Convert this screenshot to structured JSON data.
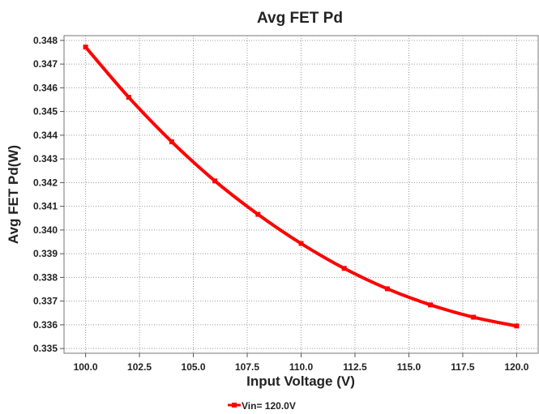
{
  "chart_data": {
    "type": "line",
    "title": "Avg FET Pd",
    "xlabel": "Input Voltage (V)",
    "ylabel": "Avg FET Pd(W)",
    "xlim": [
      99,
      121
    ],
    "ylim": [
      0.3348,
      0.3482
    ],
    "x_ticks": [
      100.0,
      102.5,
      105.0,
      107.5,
      110.0,
      112.5,
      115.0,
      117.5,
      120.0
    ],
    "x_tick_labels": [
      "100.0",
      "102.5",
      "105.0",
      "107.5",
      "110.0",
      "112.5",
      "115.0",
      "117.5",
      "120.0"
    ],
    "y_ticks": [
      0.335,
      0.336,
      0.337,
      0.338,
      0.339,
      0.34,
      0.341,
      0.342,
      0.343,
      0.344,
      0.345,
      0.346,
      0.347,
      0.348
    ],
    "y_tick_labels": [
      "0.335",
      "0.336",
      "0.337",
      "0.338",
      "0.339",
      "0.340",
      "0.341",
      "0.342",
      "0.343",
      "0.344",
      "0.345",
      "0.346",
      "0.347",
      "0.348"
    ],
    "grid": true,
    "legend_position": "bottom-center",
    "series": [
      {
        "name": "Vin= 120.0V",
        "color": "#ff0000",
        "x": [
          100,
          102,
          104,
          106,
          108,
          110,
          112,
          114,
          116,
          118,
          120
        ],
        "y": [
          0.34772,
          0.3456,
          0.34372,
          0.34207,
          0.34066,
          0.33943,
          0.33838,
          0.33752,
          0.33684,
          0.33632,
          0.33595
        ]
      }
    ]
  }
}
